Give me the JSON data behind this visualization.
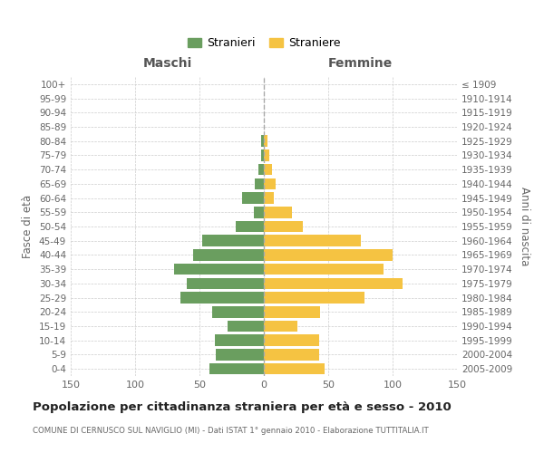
{
  "age_groups": [
    "0-4",
    "5-9",
    "10-14",
    "15-19",
    "20-24",
    "25-29",
    "30-34",
    "35-39",
    "40-44",
    "45-49",
    "50-54",
    "55-59",
    "60-64",
    "65-69",
    "70-74",
    "75-79",
    "80-84",
    "85-89",
    "90-94",
    "95-99",
    "100+"
  ],
  "birth_years": [
    "2005-2009",
    "2000-2004",
    "1995-1999",
    "1990-1994",
    "1985-1989",
    "1980-1984",
    "1975-1979",
    "1970-1974",
    "1965-1969",
    "1960-1964",
    "1955-1959",
    "1950-1954",
    "1945-1949",
    "1940-1944",
    "1935-1939",
    "1930-1934",
    "1925-1929",
    "1920-1924",
    "1915-1919",
    "1910-1914",
    "≤ 1909"
  ],
  "males": [
    42,
    37,
    38,
    28,
    40,
    65,
    60,
    70,
    55,
    48,
    22,
    8,
    17,
    7,
    4,
    2,
    2,
    0,
    0,
    0,
    0
  ],
  "females": [
    47,
    43,
    43,
    26,
    44,
    78,
    108,
    93,
    100,
    75,
    30,
    22,
    8,
    9,
    6,
    4,
    3,
    0,
    0,
    0,
    0
  ],
  "male_color": "#6a9e5f",
  "female_color": "#f5c342",
  "background_color": "#ffffff",
  "grid_color": "#cccccc",
  "title": "Popolazione per cittadinanza straniera per età e sesso - 2010",
  "subtitle": "COMUNE DI CERNUSCO SUL NAVIGLIO (MI) - Dati ISTAT 1° gennaio 2010 - Elaborazione TUTTITALIA.IT",
  "xlabel_left": "Maschi",
  "xlabel_right": "Femmine",
  "ylabel_left": "Fasce di età",
  "ylabel_right": "Anni di nascita",
  "legend_male": "Stranieri",
  "legend_female": "Straniere",
  "xlim": 150,
  "xticks": [
    -150,
    -100,
    -50,
    0,
    50,
    100,
    150
  ],
  "xticklabels": [
    "150",
    "100",
    "50",
    "0",
    "50",
    "100",
    "150"
  ]
}
